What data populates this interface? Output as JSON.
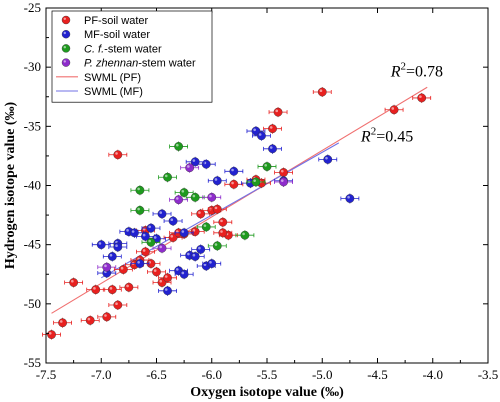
{
  "chart_data": {
    "type": "scatter",
    "xlabel": "Oxygen isotope value (‰)",
    "ylabel": "Hydrogen isotope value (‰)",
    "xlim": [
      -7.5,
      -3.5
    ],
    "ylim": [
      -55,
      -25
    ],
    "xticks": [
      -7.5,
      -7.0,
      -6.5,
      -6.0,
      -5.5,
      -5.0,
      -4.5,
      -4.0,
      -3.5
    ],
    "xtick_labels": [
      "-7.5",
      "-7.0",
      "-6.5",
      "-6.0",
      "-5.5",
      "-5.0",
      "-4.5",
      "-4.0",
      "-3.5"
    ],
    "yticks": [
      -55,
      -50,
      -45,
      -40,
      -35,
      -30,
      -25
    ],
    "ytick_labels": [
      "-55",
      "-50",
      "-45",
      "-40",
      "-35",
      "-30",
      "-25"
    ],
    "legend": {
      "position": "top-left"
    },
    "series": [
      {
        "name": "PF-soil water",
        "name_prefix": "PF-soil water",
        "name_italic": "",
        "name_suffix": "",
        "color": "#e8201f",
        "kind": "points",
        "points": [
          [
            -7.45,
            -52.6
          ],
          [
            -7.35,
            -51.6
          ],
          [
            -7.25,
            -48.2
          ],
          [
            -7.1,
            -51.4
          ],
          [
            -7.05,
            -48.8
          ],
          [
            -6.95,
            -51.1
          ],
          [
            -6.9,
            -48.8
          ],
          [
            -6.85,
            -50.1
          ],
          [
            -6.8,
            -47.1
          ],
          [
            -6.75,
            -48.6
          ],
          [
            -6.7,
            -46.7
          ],
          [
            -6.65,
            -46.3
          ],
          [
            -6.6,
            -45.6
          ],
          [
            -6.55,
            -46.6
          ],
          [
            -6.5,
            -47.3
          ],
          [
            -6.45,
            -48.2
          ],
          [
            -6.4,
            -47.8
          ],
          [
            -6.35,
            -44.4
          ],
          [
            -6.3,
            -44.0
          ],
          [
            -6.25,
            -44.1
          ],
          [
            -6.15,
            -43.9
          ],
          [
            -6.1,
            -42.4
          ],
          [
            -6.0,
            -42.1
          ],
          [
            -5.95,
            -42.0
          ],
          [
            -5.9,
            -43.1
          ],
          [
            -5.85,
            -44.2
          ],
          [
            -5.8,
            -39.9
          ],
          [
            -5.6,
            -39.5
          ],
          [
            -5.55,
            -39.8
          ],
          [
            -5.45,
            -35.2
          ],
          [
            -5.4,
            -33.8
          ],
          [
            -5.35,
            -38.9
          ],
          [
            -5.0,
            -32.1
          ],
          [
            -4.35,
            -33.6
          ],
          [
            -4.1,
            -32.6
          ],
          [
            -6.85,
            -37.4
          ],
          [
            -5.9,
            -44.0
          ],
          [
            -6.6,
            -43.8
          ]
        ]
      },
      {
        "name": "MF-soil water",
        "name_prefix": "MF-soil water",
        "name_italic": "",
        "name_suffix": "",
        "color": "#2222d0",
        "kind": "points",
        "points": [
          [
            -7.0,
            -45.0
          ],
          [
            -6.95,
            -47.4
          ],
          [
            -6.9,
            -46.0
          ],
          [
            -6.85,
            -44.9
          ],
          [
            -6.75,
            -43.9
          ],
          [
            -6.7,
            -44.0
          ],
          [
            -6.65,
            -46.6
          ],
          [
            -6.6,
            -44.3
          ],
          [
            -6.55,
            -43.6
          ],
          [
            -6.45,
            -42.4
          ],
          [
            -6.4,
            -48.9
          ],
          [
            -6.35,
            -43.0
          ],
          [
            -6.3,
            -47.2
          ],
          [
            -6.25,
            -47.5
          ],
          [
            -6.2,
            -45.9
          ],
          [
            -6.15,
            -46.0
          ],
          [
            -6.1,
            -45.4
          ],
          [
            -6.05,
            -46.8
          ],
          [
            -6.0,
            -46.6
          ],
          [
            -6.05,
            -38.2
          ],
          [
            -5.95,
            -39.6
          ],
          [
            -5.8,
            -38.8
          ],
          [
            -5.65,
            -39.8
          ],
          [
            -5.6,
            -35.4
          ],
          [
            -5.55,
            -35.8
          ],
          [
            -5.45,
            -36.9
          ],
          [
            -5.35,
            -39.6
          ],
          [
            -4.95,
            -37.8
          ],
          [
            -4.75,
            -41.1
          ],
          [
            -6.15,
            -38.0
          ],
          [
            -6.25,
            -44.0
          ],
          [
            -6.5,
            -44.5
          ],
          [
            -6.85,
            -45.2
          ]
        ]
      },
      {
        "name": "C. f.-stem water",
        "name_prefix": "",
        "name_italic": "C. f.",
        "name_suffix": "-stem water",
        "color": "#1e9a1e",
        "kind": "points",
        "points": [
          [
            -6.65,
            -40.4
          ],
          [
            -6.65,
            -42.1
          ],
          [
            -6.4,
            -39.3
          ],
          [
            -6.3,
            -36.7
          ],
          [
            -6.25,
            -40.6
          ],
          [
            -6.15,
            -41.0
          ],
          [
            -6.05,
            -43.5
          ],
          [
            -5.95,
            -45.1
          ],
          [
            -5.7,
            -44.2
          ],
          [
            -5.6,
            -39.7
          ],
          [
            -5.5,
            -38.4
          ],
          [
            -6.55,
            -44.8
          ]
        ]
      },
      {
        "name": "P. zhennan-stem water",
        "name_prefix": "",
        "name_italic": "P. zhennan",
        "name_suffix": "-stem water",
        "color": "#8e2ccc",
        "kind": "points",
        "points": [
          [
            -6.45,
            -45.3
          ],
          [
            -6.3,
            -41.2
          ],
          [
            -6.2,
            -38.5
          ],
          [
            -6.0,
            -41.0
          ],
          [
            -5.35,
            -39.7
          ],
          [
            -6.95,
            -46.9
          ]
        ]
      },
      {
        "name": "SWML (PF)",
        "name_prefix": "SWML (PF)",
        "name_italic": "",
        "name_suffix": "",
        "color": "#f07070",
        "kind": "line",
        "line": [
          [
            -7.45,
            -50.8
          ],
          [
            -4.05,
            -31.7
          ]
        ]
      },
      {
        "name": "SWML (MF)",
        "name_prefix": "SWML (MF)",
        "name_italic": "",
        "name_suffix": "",
        "color": "#7272e6",
        "kind": "line",
        "line": [
          [
            -7.0,
            -47.8
          ],
          [
            -4.85,
            -36.4
          ]
        ]
      }
    ],
    "annotations": [
      {
        "label": "R",
        "sup": "2",
        "value": "=0.78",
        "x": -4.38,
        "y": -30.8
      },
      {
        "label": "R",
        "sup": "2",
        "value": "=0.45",
        "x": -4.65,
        "y": -36.3
      }
    ]
  }
}
